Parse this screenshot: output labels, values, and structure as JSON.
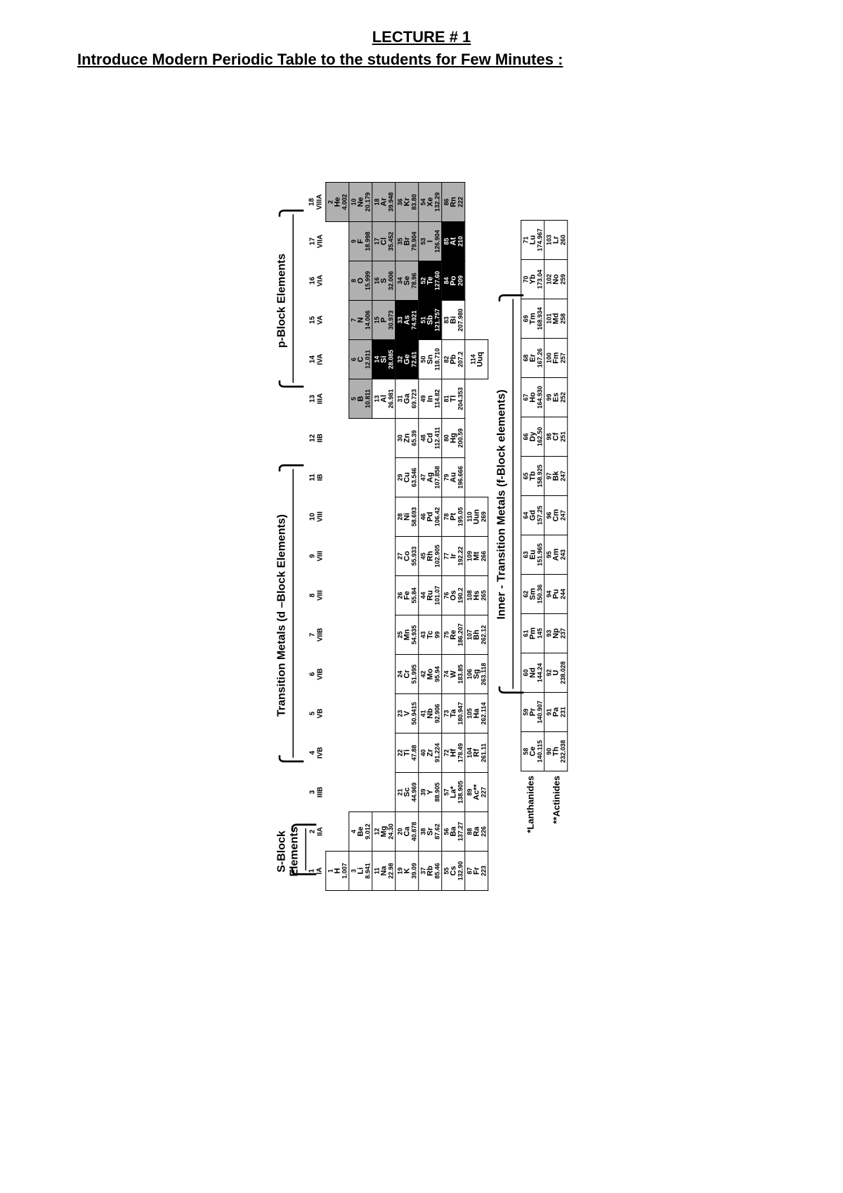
{
  "title": "LECTURE # 1",
  "subtitle": "Introduce Modern Periodic Table to the students for Few Minutes :",
  "labels": {
    "sblock": "S-Block    Elements",
    "dblock": "Transition Metals (d –Block Elements)",
    "pblock": "p-Block Elements",
    "fblock": "Inner - Transition Metals (f-Block elements)",
    "lanth": "*Lanthanides",
    "act": "**Actinides"
  },
  "colors": {
    "grey": "#b0b0b0",
    "black": "#000000",
    "white": "#ffffff"
  },
  "group_headers": [
    {
      "g": "1",
      "r": "IA"
    },
    {
      "g": "2",
      "r": "IIA"
    },
    {
      "g": "3",
      "r": "IIIB"
    },
    {
      "g": "4",
      "r": "IVB"
    },
    {
      "g": "5",
      "r": "VB"
    },
    {
      "g": "6",
      "r": "VIB"
    },
    {
      "g": "7",
      "r": "VIIB"
    },
    {
      "g": "8",
      "r": "VIII"
    },
    {
      "g": "9",
      "r": "VIII"
    },
    {
      "g": "10",
      "r": "VIII"
    },
    {
      "g": "11",
      "r": "IB"
    },
    {
      "g": "12",
      "r": "IIB"
    },
    {
      "g": "13",
      "r": "IIIA"
    },
    {
      "g": "14",
      "r": "IVA"
    },
    {
      "g": "15",
      "r": "VA"
    },
    {
      "g": "16",
      "r": "VIA"
    },
    {
      "g": "17",
      "r": "VIIA"
    },
    {
      "g": "18",
      "r": "VIIIA"
    }
  ],
  "rows": [
    [
      {
        "z": "1",
        "s": "H",
        "m": "1.007",
        "shade": ""
      },
      null,
      null,
      null,
      null,
      null,
      null,
      null,
      null,
      null,
      null,
      null,
      null,
      null,
      null,
      null,
      null,
      {
        "z": "2",
        "s": "He",
        "m": "4.002",
        "shade": "grey"
      }
    ],
    [
      {
        "z": "3",
        "s": "Li",
        "m": "8.941",
        "shade": ""
      },
      {
        "z": "4",
        "s": "Be",
        "m": "9.012",
        "shade": ""
      },
      null,
      null,
      null,
      null,
      null,
      null,
      null,
      null,
      null,
      null,
      {
        "z": "5",
        "s": "B",
        "m": "10.811",
        "shade": "grey"
      },
      {
        "z": "6",
        "s": "C",
        "m": "12.011",
        "shade": "grey"
      },
      {
        "z": "7",
        "s": "N",
        "m": "14.006",
        "shade": "grey"
      },
      {
        "z": "8",
        "s": "O",
        "m": "15.999",
        "shade": "grey"
      },
      {
        "z": "9",
        "s": "F",
        "m": "18.998",
        "shade": "grey"
      },
      {
        "z": "10",
        "s": "Ne",
        "m": "20.179",
        "shade": "grey"
      }
    ],
    [
      {
        "z": "11",
        "s": "Na",
        "m": "22.98",
        "shade": ""
      },
      {
        "z": "12",
        "s": "Mg",
        "m": "24.30",
        "shade": ""
      },
      null,
      null,
      null,
      null,
      null,
      null,
      null,
      null,
      null,
      null,
      {
        "z": "13",
        "s": "Al",
        "m": "26.981",
        "shade": ""
      },
      {
        "z": "14",
        "s": "Si",
        "m": "28.085",
        "shade": "black"
      },
      {
        "z": "15",
        "s": "P",
        "m": "30.973",
        "shade": "grey"
      },
      {
        "z": "16",
        "s": "S",
        "m": "32.006",
        "shade": "grey"
      },
      {
        "z": "17",
        "s": "Cl",
        "m": "35.452",
        "shade": "grey"
      },
      {
        "z": "18",
        "s": "Ar",
        "m": "39.948",
        "shade": "grey"
      }
    ],
    [
      {
        "z": "19",
        "s": "K",
        "m": "39.09",
        "shade": ""
      },
      {
        "z": "20",
        "s": "Ca",
        "m": "40.878",
        "shade": ""
      },
      {
        "z": "21",
        "s": "Sc",
        "m": "44.969",
        "shade": ""
      },
      {
        "z": "22",
        "s": "Ti",
        "m": "47.88",
        "shade": ""
      },
      {
        "z": "23",
        "s": "V",
        "m": "50.9415",
        "shade": ""
      },
      {
        "z": "24",
        "s": "Cr",
        "m": "51.995",
        "shade": ""
      },
      {
        "z": "25",
        "s": "Mn",
        "m": "54.935",
        "shade": ""
      },
      {
        "z": "26",
        "s": "Fe",
        "m": "55.84",
        "shade": ""
      },
      {
        "z": "27",
        "s": "Co",
        "m": "55.933",
        "shade": ""
      },
      {
        "z": "28",
        "s": "Ni",
        "m": "58.693",
        "shade": ""
      },
      {
        "z": "29",
        "s": "Cu",
        "m": "63.546",
        "shade": ""
      },
      {
        "z": "30",
        "s": "Zn",
        "m": "65.39",
        "shade": ""
      },
      {
        "z": "31",
        "s": "Ga",
        "m": "69.723",
        "shade": ""
      },
      {
        "z": "32",
        "s": "Ge",
        "m": "72.61",
        "shade": "black"
      },
      {
        "z": "33",
        "s": "As",
        "m": "74.921",
        "shade": "black"
      },
      {
        "z": "34",
        "s": "Se",
        "m": "78.96",
        "shade": "grey"
      },
      {
        "z": "35",
        "s": "Br",
        "m": "79.904",
        "shade": "grey"
      },
      {
        "z": "36",
        "s": "Kr",
        "m": "83.80",
        "shade": "grey"
      }
    ],
    [
      {
        "z": "37",
        "s": "Rb",
        "m": "85.46",
        "shade": ""
      },
      {
        "z": "38",
        "s": "Sr",
        "m": "87.62",
        "shade": ""
      },
      {
        "z": "39",
        "s": "Y",
        "m": "88.905",
        "shade": ""
      },
      {
        "z": "40",
        "s": "Zr",
        "m": "91.224",
        "shade": ""
      },
      {
        "z": "41",
        "s": "Nb",
        "m": "92.906",
        "shade": ""
      },
      {
        "z": "42",
        "s": "Mo",
        "m": "95.94",
        "shade": ""
      },
      {
        "z": "43",
        "s": "Tc",
        "m": "99",
        "shade": ""
      },
      {
        "z": "44",
        "s": "Ru",
        "m": "101.07",
        "shade": ""
      },
      {
        "z": "45",
        "s": "Rh",
        "m": "102.905",
        "shade": ""
      },
      {
        "z": "46",
        "s": "Pd",
        "m": "106.42",
        "shade": ""
      },
      {
        "z": "47",
        "s": "Ag",
        "m": "107.858",
        "shade": ""
      },
      {
        "z": "48",
        "s": "Cd",
        "m": "112.411",
        "shade": ""
      },
      {
        "z": "49",
        "s": "In",
        "m": "114.82",
        "shade": ""
      },
      {
        "z": "50",
        "s": "Sn",
        "m": "118.710",
        "shade": ""
      },
      {
        "z": "51",
        "s": "Sb",
        "m": "121.757",
        "shade": "black"
      },
      {
        "z": "52",
        "s": "Te",
        "m": "127.60",
        "shade": "black"
      },
      {
        "z": "53",
        "s": "I",
        "m": "126.904",
        "shade": "grey"
      },
      {
        "z": "54",
        "s": "Xe",
        "m": "132.29",
        "shade": "grey"
      }
    ],
    [
      {
        "z": "55",
        "s": "Cs",
        "m": "132.90",
        "shade": ""
      },
      {
        "z": "56",
        "s": "Ba",
        "m": "137.27",
        "shade": ""
      },
      {
        "z": "57",
        "s": "La*",
        "m": "138.905",
        "shade": ""
      },
      {
        "z": "72",
        "s": "Hf",
        "m": "178.49",
        "shade": ""
      },
      {
        "z": "73",
        "s": "Ta",
        "m": "180.947",
        "shade": ""
      },
      {
        "z": "74",
        "s": "W",
        "m": "183.85",
        "shade": ""
      },
      {
        "z": "75",
        "s": "Re",
        "m": "186.207",
        "shade": ""
      },
      {
        "z": "76",
        "s": "Os",
        "m": "190.2",
        "shade": ""
      },
      {
        "z": "77",
        "s": "Ir",
        "m": "192.22",
        "shade": ""
      },
      {
        "z": "78",
        "s": "Pt",
        "m": "195.05",
        "shade": ""
      },
      {
        "z": "79",
        "s": "Au",
        "m": "196.666",
        "shade": ""
      },
      {
        "z": "80",
        "s": "Hg",
        "m": "200.59",
        "shade": ""
      },
      {
        "z": "81",
        "s": "Tl",
        "m": "204.353",
        "shade": ""
      },
      {
        "z": "82",
        "s": "Pb",
        "m": "207.2",
        "shade": ""
      },
      {
        "z": "83",
        "s": "Bi",
        "m": "207.980",
        "shade": ""
      },
      {
        "z": "84",
        "s": "Po",
        "m": "209",
        "shade": "black"
      },
      {
        "z": "85",
        "s": "At",
        "m": "210",
        "shade": "black"
      },
      {
        "z": "86",
        "s": "Rn",
        "m": "222",
        "shade": "grey"
      }
    ],
    [
      {
        "z": "87",
        "s": "Fr",
        "m": "223",
        "shade": ""
      },
      {
        "z": "88",
        "s": "Ra",
        "m": "226",
        "shade": ""
      },
      {
        "z": "89",
        "s": "Ac**",
        "m": "227",
        "shade": ""
      },
      {
        "z": "104",
        "s": "Rf",
        "m": "261.11",
        "shade": ""
      },
      {
        "z": "105",
        "s": "Ha",
        "m": "262.114",
        "shade": ""
      },
      {
        "z": "106",
        "s": "Sg",
        "m": "263.118",
        "shade": ""
      },
      {
        "z": "107",
        "s": "Bh",
        "m": "262.12",
        "shade": ""
      },
      {
        "z": "108",
        "s": "Hs",
        "m": "265",
        "shade": ""
      },
      {
        "z": "109",
        "s": "Mt",
        "m": "266",
        "shade": ""
      },
      {
        "z": "110",
        "s": "Uun",
        "m": "269",
        "shade": ""
      },
      null,
      null,
      null,
      {
        "z": "114",
        "s": "Uuq",
        "m": "",
        "shade": ""
      },
      null,
      null,
      null,
      null
    ]
  ],
  "lanth": [
    {
      "z": "58",
      "s": "Ce",
      "m": "140.115"
    },
    {
      "z": "59",
      "s": "Pr",
      "m": "140.907"
    },
    {
      "z": "60",
      "s": "Nd",
      "m": "144.24"
    },
    {
      "z": "61",
      "s": "Pm",
      "m": "145"
    },
    {
      "z": "62",
      "s": "Sm",
      "m": "150.36"
    },
    {
      "z": "63",
      "s": "Eu",
      "m": "151.965"
    },
    {
      "z": "64",
      "s": "Gd",
      "m": "157.25"
    },
    {
      "z": "65",
      "s": "Tb",
      "m": "158.925"
    },
    {
      "z": "66",
      "s": "Dy",
      "m": "162.50"
    },
    {
      "z": "67",
      "s": "Ho",
      "m": "164.930"
    },
    {
      "z": "68",
      "s": "Er",
      "m": "167.26"
    },
    {
      "z": "69",
      "s": "Tm",
      "m": "168.934"
    },
    {
      "z": "70",
      "s": "Yb",
      "m": "173.04"
    },
    {
      "z": "71",
      "s": "Lu",
      "m": "174.967"
    }
  ],
  "act": [
    {
      "z": "90",
      "s": "Th",
      "m": "232.038"
    },
    {
      "z": "91",
      "s": "Pa",
      "m": "231"
    },
    {
      "z": "92",
      "s": "U",
      "m": "238.028"
    },
    {
      "z": "93",
      "s": "Np",
      "m": "237"
    },
    {
      "z": "94",
      "s": "Pu",
      "m": "244"
    },
    {
      "z": "95",
      "s": "Am",
      "m": "243"
    },
    {
      "z": "96",
      "s": "Cm",
      "m": "247"
    },
    {
      "z": "97",
      "s": "Bk",
      "m": "247"
    },
    {
      "z": "98",
      "s": "Cf",
      "m": "251"
    },
    {
      "z": "99",
      "s": "Es",
      "m": "252"
    },
    {
      "z": "100",
      "s": "Fm",
      "m": "257"
    },
    {
      "z": "101",
      "s": "Md",
      "m": "258"
    },
    {
      "z": "102",
      "s": "No",
      "m": "259"
    },
    {
      "z": "103",
      "s": "Lr",
      "m": "260"
    }
  ]
}
